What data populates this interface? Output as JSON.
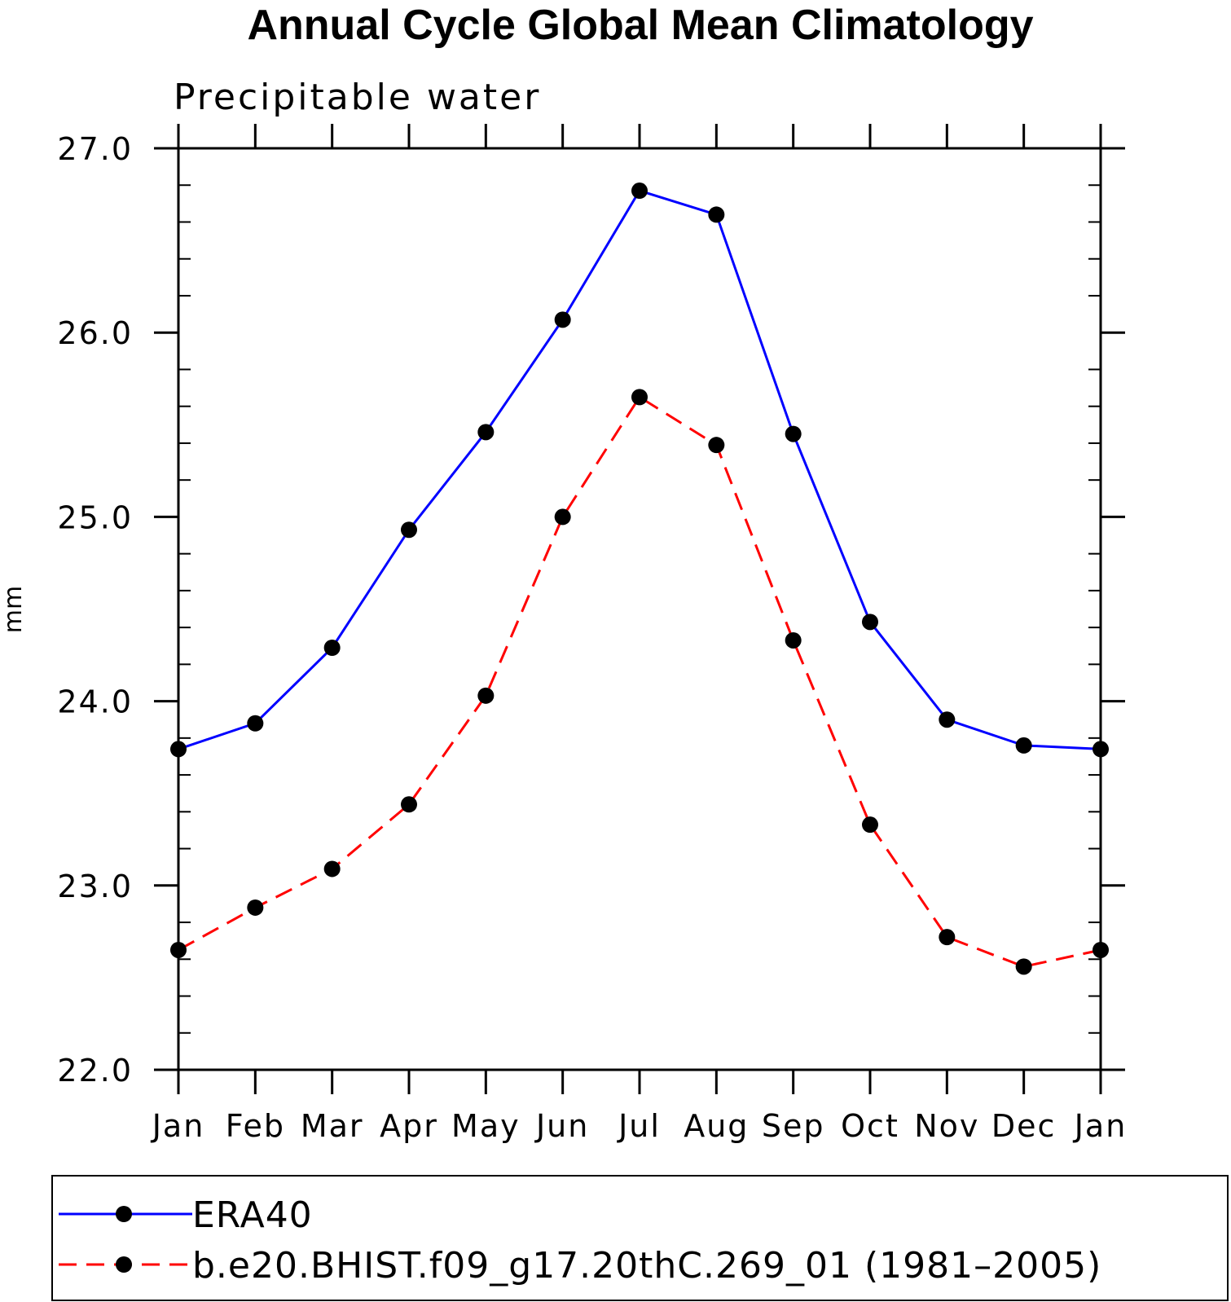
{
  "chart_data": {
    "type": "line",
    "title": "Annual Cycle Global Mean Climatology",
    "subtitle": "Precipitable water",
    "xlabel": "",
    "ylabel": "mm",
    "categories": [
      "Jan",
      "Feb",
      "Mar",
      "Apr",
      "May",
      "Jun",
      "Jul",
      "Aug",
      "Sep",
      "Oct",
      "Nov",
      "Dec",
      "Jan"
    ],
    "ylim": [
      22.0,
      27.0
    ],
    "yticks": [
      "22.0",
      "23.0",
      "24.0",
      "25.0",
      "26.0",
      "27.0"
    ],
    "yminor_step": 0.2,
    "grid": false,
    "legend_position": "bottom",
    "series": [
      {
        "name": "ERA40",
        "color": "#0000ff",
        "dash": "solid",
        "values": [
          23.74,
          23.88,
          24.29,
          24.93,
          25.46,
          26.07,
          26.77,
          26.64,
          25.45,
          24.43,
          23.9,
          23.76,
          23.74
        ]
      },
      {
        "name": "b.e20.BHIST.f09_g17.20thC.269_01 (1981–2005)",
        "color": "#ff0000",
        "dash": "dashed",
        "values": [
          22.65,
          22.88,
          23.09,
          23.44,
          24.03,
          25.0,
          25.65,
          25.39,
          24.33,
          23.33,
          22.72,
          22.56,
          22.65
        ]
      }
    ]
  }
}
